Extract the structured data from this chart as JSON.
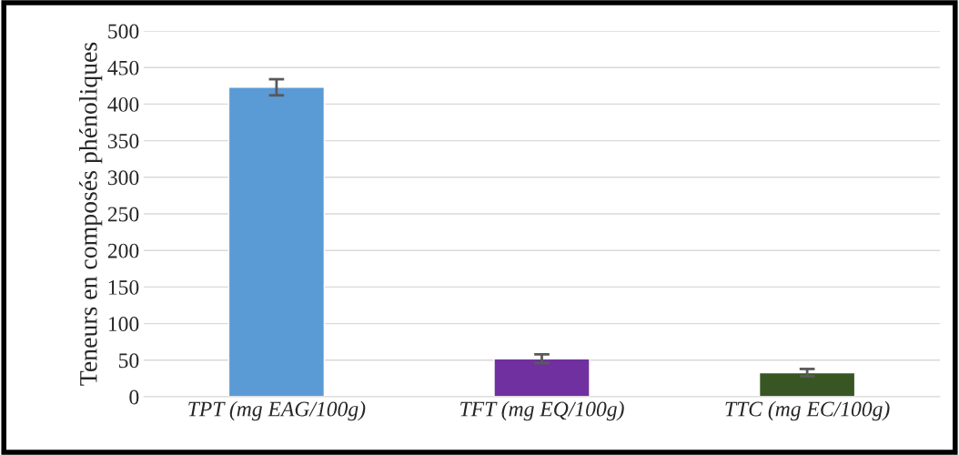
{
  "chart_data": {
    "type": "bar",
    "ylabel": "Teneurs en composés phénoliques",
    "categories": [
      "TPT (mg EAG/100g)",
      "TFT (mg EQ/100g)",
      "TTC (mg EC/100g)"
    ],
    "values": [
      423,
      52,
      33
    ],
    "colors": [
      "#5b9bd5",
      "#7030a0",
      "#375623"
    ],
    "errors": [
      11,
      6,
      5
    ],
    "ylim": [
      0,
      500
    ],
    "yticks": [
      0,
      50,
      100,
      150,
      200,
      250,
      300,
      350,
      400,
      450,
      500
    ],
    "grid": "y"
  }
}
